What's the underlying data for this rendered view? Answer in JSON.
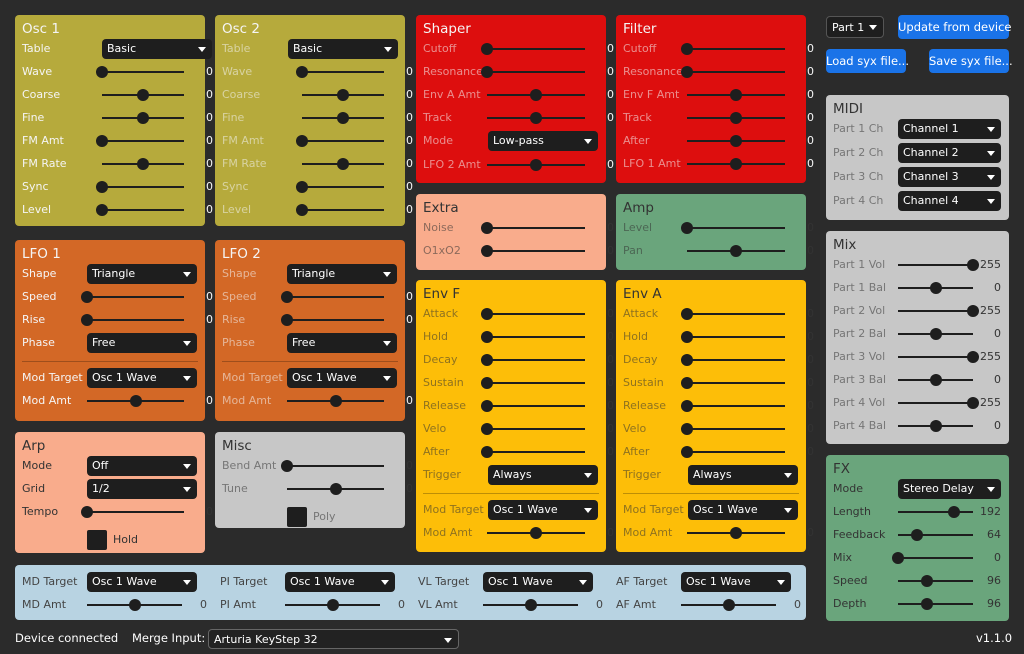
{
  "colors": {
    "olive": "#b6aa3c",
    "orange": "#d36826",
    "salmon": "#f9ac8c",
    "gray": "#c7c7c7",
    "red": "#dd0e0e",
    "green": "#6aa57c",
    "yellow": "#fdbe08",
    "lightblue": "#b8d3e2",
    "blue": "#1a73e8"
  },
  "panels": [
    {
      "id": "osc1",
      "title": "Osc 1",
      "rows": [
        {
          "type": "dd",
          "label": "Table",
          "value": "Basic"
        },
        {
          "type": "sl",
          "label": "Wave",
          "value": "0",
          "pos": 0
        },
        {
          "type": "sl",
          "label": "Coarse",
          "value": "0",
          "pos": 0.5
        },
        {
          "type": "sl",
          "label": "Fine",
          "value": "0",
          "pos": 0.5
        },
        {
          "type": "sl",
          "label": "FM Amt",
          "value": "0",
          "pos": 0
        },
        {
          "type": "sl",
          "label": "FM Rate",
          "value": "0",
          "pos": 0.5
        },
        {
          "type": "sl",
          "label": "Sync",
          "value": "0",
          "pos": 0
        },
        {
          "type": "sl",
          "label": "Level",
          "value": "0",
          "pos": 0
        }
      ]
    },
    {
      "id": "osc2",
      "title": "Osc 2",
      "rows": [
        {
          "type": "dd",
          "label": "Table",
          "value": "Basic"
        },
        {
          "type": "sl",
          "label": "Wave",
          "value": "0",
          "pos": 0
        },
        {
          "type": "sl",
          "label": "Coarse",
          "value": "0",
          "pos": 0.5
        },
        {
          "type": "sl",
          "label": "Fine",
          "value": "0",
          "pos": 0.5
        },
        {
          "type": "sl",
          "label": "FM Amt",
          "value": "0",
          "pos": 0
        },
        {
          "type": "sl",
          "label": "FM Rate",
          "value": "0",
          "pos": 0.5
        },
        {
          "type": "sl",
          "label": "Sync",
          "value": "0",
          "pos": 0
        },
        {
          "type": "sl",
          "label": "Level",
          "value": "0",
          "pos": 0
        }
      ]
    },
    {
      "id": "shaper",
      "title": "Shaper",
      "rows": [
        {
          "type": "sl",
          "label": "Cutoff",
          "value": "0",
          "pos": 0
        },
        {
          "type": "sl",
          "label": "Resonance",
          "value": "0",
          "pos": 0
        },
        {
          "type": "sl",
          "label": "Env A Amt",
          "value": "0",
          "pos": 0.5
        },
        {
          "type": "sl",
          "label": "Track",
          "value": "0",
          "pos": 0.5
        },
        {
          "type": "dd",
          "label": "Mode",
          "value": "Low-pass"
        },
        {
          "type": "sl",
          "label": "LFO 2 Amt",
          "value": "0",
          "pos": 0.5
        }
      ]
    },
    {
      "id": "filter",
      "title": "Filter",
      "rows": [
        {
          "type": "sl",
          "label": "Cutoff",
          "value": "0",
          "pos": 0
        },
        {
          "type": "sl",
          "label": "Resonance",
          "value": "0",
          "pos": 0
        },
        {
          "type": "sl",
          "label": "Env F Amt",
          "value": "0",
          "pos": 0.5
        },
        {
          "type": "sl",
          "label": "Track",
          "value": "0",
          "pos": 0.5
        },
        {
          "type": "sl",
          "label": "After",
          "value": "0",
          "pos": 0.5
        },
        {
          "type": "sl",
          "label": "LFO 1 Amt",
          "value": "0",
          "pos": 0.5
        }
      ]
    },
    {
      "id": "lfo1",
      "title": "LFO 1",
      "rows": [
        {
          "type": "dd",
          "label": "Shape",
          "value": "Triangle"
        },
        {
          "type": "sl",
          "label": "Speed",
          "value": "0",
          "pos": 0
        },
        {
          "type": "sl",
          "label": "Rise",
          "value": "0",
          "pos": 0
        },
        {
          "type": "dd",
          "label": "Phase",
          "value": "Free"
        },
        {
          "type": "dd",
          "label": "Mod Target",
          "value": "Osc 1 Wave"
        },
        {
          "type": "sl",
          "label": "Mod Amt",
          "value": "0",
          "pos": 0.5
        }
      ]
    },
    {
      "id": "lfo2",
      "title": "LFO 2",
      "rows": [
        {
          "type": "dd",
          "label": "Shape",
          "value": "Triangle"
        },
        {
          "type": "sl",
          "label": "Speed",
          "value": "0",
          "pos": 0
        },
        {
          "type": "sl",
          "label": "Rise",
          "value": "0",
          "pos": 0
        },
        {
          "type": "dd",
          "label": "Phase",
          "value": "Free"
        },
        {
          "type": "dd",
          "label": "Mod Target",
          "value": "Osc 1 Wave"
        },
        {
          "type": "sl",
          "label": "Mod Amt",
          "value": "0",
          "pos": 0.5
        }
      ]
    },
    {
      "id": "extra",
      "title": "Extra",
      "rows": [
        {
          "type": "sl",
          "label": "Noise",
          "value": "0",
          "pos": 0
        },
        {
          "type": "sl",
          "label": "O1xO2",
          "value": "0",
          "pos": 0
        }
      ]
    },
    {
      "id": "amp",
      "title": "Amp",
      "rows": [
        {
          "type": "sl",
          "label": "Level",
          "value": "0",
          "pos": 0
        },
        {
          "type": "sl",
          "label": "Pan",
          "value": "0",
          "pos": 0.5
        }
      ]
    },
    {
      "id": "envf",
      "title": "Env F",
      "rows": [
        {
          "type": "sl",
          "label": "Attack",
          "value": "0",
          "pos": 0
        },
        {
          "type": "sl",
          "label": "Hold",
          "value": "0",
          "pos": 0
        },
        {
          "type": "sl",
          "label": "Decay",
          "value": "0",
          "pos": 0
        },
        {
          "type": "sl",
          "label": "Sustain",
          "value": "0",
          "pos": 0
        },
        {
          "type": "sl",
          "label": "Release",
          "value": "0",
          "pos": 0
        },
        {
          "type": "sl",
          "label": "Velo",
          "value": "0",
          "pos": 0
        },
        {
          "type": "sl",
          "label": "After",
          "value": "0",
          "pos": 0
        },
        {
          "type": "dd",
          "label": "Trigger",
          "value": "Always"
        },
        {
          "type": "dd",
          "label": "Mod Target",
          "value": "Osc 1 Wave"
        },
        {
          "type": "sl",
          "label": "Mod Amt",
          "value": "0",
          "pos": 0.5
        }
      ]
    },
    {
      "id": "enva",
      "title": "Env A",
      "rows": [
        {
          "type": "sl",
          "label": "Attack",
          "value": "0",
          "pos": 0
        },
        {
          "type": "sl",
          "label": "Hold",
          "value": "0",
          "pos": 0
        },
        {
          "type": "sl",
          "label": "Decay",
          "value": "0",
          "pos": 0
        },
        {
          "type": "sl",
          "label": "Sustain",
          "value": "0",
          "pos": 0
        },
        {
          "type": "sl",
          "label": "Release",
          "value": "0",
          "pos": 0
        },
        {
          "type": "sl",
          "label": "Velo",
          "value": "0",
          "pos": 0
        },
        {
          "type": "sl",
          "label": "After",
          "value": "0",
          "pos": 0
        },
        {
          "type": "dd",
          "label": "Trigger",
          "value": "Always"
        },
        {
          "type": "dd",
          "label": "Mod Target",
          "value": "Osc 1 Wave"
        },
        {
          "type": "sl",
          "label": "Mod Amt",
          "value": "0",
          "pos": 0.5
        }
      ]
    },
    {
      "id": "arp",
      "title": "Arp",
      "rows": [
        {
          "type": "dd",
          "label": "Mode",
          "value": "Off"
        },
        {
          "type": "dd",
          "label": "Grid",
          "value": "1/2"
        },
        {
          "type": "sl",
          "label": "Tempo",
          "value": "0",
          "pos": 0
        },
        {
          "type": "cb",
          "label": "Hold",
          "checked": false
        }
      ]
    },
    {
      "id": "misc",
      "title": "Misc",
      "rows": [
        {
          "type": "sl",
          "label": "Bend Amt",
          "value": "0",
          "pos": 0
        },
        {
          "type": "sl",
          "label": "Tune",
          "value": "0",
          "pos": 0.5
        },
        {
          "type": "cb",
          "label": "Poly",
          "checked": false
        }
      ]
    },
    {
      "id": "midi",
      "title": "MIDI",
      "rows": [
        {
          "type": "dd",
          "label": "Part 1 Ch",
          "value": "Channel 1"
        },
        {
          "type": "dd",
          "label": "Part 2 Ch",
          "value": "Channel 2"
        },
        {
          "type": "dd",
          "label": "Part 3 Ch",
          "value": "Channel 3"
        },
        {
          "type": "dd",
          "label": "Part 4 Ch",
          "value": "Channel 4"
        }
      ]
    },
    {
      "id": "mix",
      "title": "Mix",
      "rows": [
        {
          "type": "sl",
          "label": "Part 1 Vol",
          "value": "255",
          "pos": 1
        },
        {
          "type": "sl",
          "label": "Part 1 Bal",
          "value": "0",
          "pos": 0.5
        },
        {
          "type": "sl",
          "label": "Part 2 Vol",
          "value": "255",
          "pos": 1
        },
        {
          "type": "sl",
          "label": "Part 2 Bal",
          "value": "0",
          "pos": 0.5
        },
        {
          "type": "sl",
          "label": "Part 3 Vol",
          "value": "255",
          "pos": 1
        },
        {
          "type": "sl",
          "label": "Part 3 Bal",
          "value": "0",
          "pos": 0.5
        },
        {
          "type": "sl",
          "label": "Part 4 Vol",
          "value": "255",
          "pos": 1
        },
        {
          "type": "sl",
          "label": "Part 4 Bal",
          "value": "0",
          "pos": 0.5
        }
      ]
    },
    {
      "id": "fx",
      "title": "FX",
      "rows": [
        {
          "type": "dd",
          "label": "Mode",
          "value": "Stereo Delay"
        },
        {
          "type": "sl",
          "label": "Length",
          "value": "192",
          "pos": 0.75
        },
        {
          "type": "sl",
          "label": "Feedback",
          "value": "64",
          "pos": 0.25
        },
        {
          "type": "sl",
          "label": "Mix",
          "value": "0",
          "pos": 0
        },
        {
          "type": "sl",
          "label": "Speed",
          "value": "96",
          "pos": 0.38
        },
        {
          "type": "sl",
          "label": "Depth",
          "value": "96",
          "pos": 0.38
        }
      ]
    }
  ],
  "mod": [
    {
      "target_label": "MD Target",
      "target": "Osc 1 Wave",
      "amt_label": "MD Amt",
      "amt": "0",
      "pos": 0.5
    },
    {
      "target_label": "PI Target",
      "target": "Osc 1 Wave",
      "amt_label": "PI Amt",
      "amt": "0",
      "pos": 0.5
    },
    {
      "target_label": "VL Target",
      "target": "Osc 1 Wave",
      "amt_label": "VL Amt",
      "amt": "0",
      "pos": 0.5
    },
    {
      "target_label": "AF Target",
      "target": "Osc 1 Wave",
      "amt_label": "AF Amt",
      "amt": "0",
      "pos": 0.5
    }
  ],
  "topbar": {
    "part_select": "Part 1",
    "update": "Update from device",
    "load": "Load syx file...",
    "save": "Save syx file..."
  },
  "footer": {
    "status": "Device connected",
    "merge_label": "Merge Input:",
    "merge_value": "Arturia KeyStep 32",
    "version": "v1.1.0"
  }
}
